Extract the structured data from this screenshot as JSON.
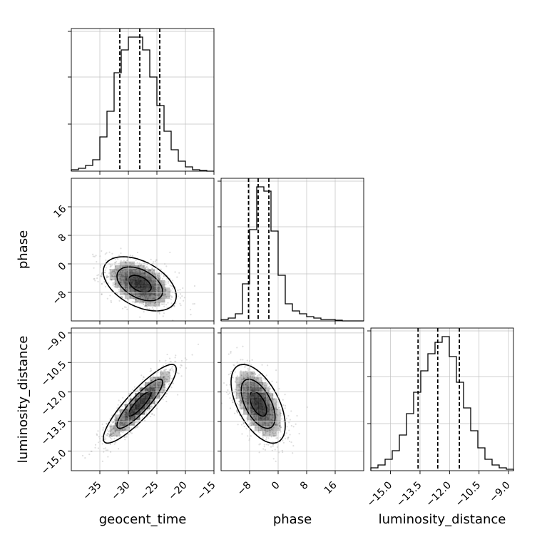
{
  "chart_data": {
    "type": "corner",
    "parameters": [
      {
        "name": "geocent_time",
        "range": [
          -40,
          -15
        ],
        "ticks": [
          -35,
          -30,
          -25,
          -20,
          -15
        ],
        "tick_labels": [
          "−35",
          "−30",
          "−25",
          "−20",
          "−15"
        ],
        "quantiles": [
          -31.5,
          -28.0,
          -24.5
        ],
        "hist_bins": [
          -40,
          -38.75,
          -37.5,
          -36.25,
          -35,
          -33.75,
          -32.5,
          -31.25,
          -30,
          -28.75,
          -27.5,
          -26.25,
          -25,
          -23.75,
          -22.5,
          -21.25,
          -20,
          -18.75,
          -17.5,
          -16.25,
          -15
        ],
        "hist_heights": [
          0.01,
          0.02,
          0.04,
          0.08,
          0.24,
          0.42,
          0.69,
          0.85,
          0.94,
          0.94,
          0.85,
          0.66,
          0.46,
          0.28,
          0.15,
          0.07,
          0.03,
          0.01,
          0.005,
          0.0
        ]
      },
      {
        "name": "phase",
        "range": [
          -16,
          24
        ],
        "ticks": [
          -8,
          0,
          8,
          16
        ],
        "tick_labels": [
          "−8",
          "0",
          "8",
          "16"
        ],
        "quantiles": [
          -8.3,
          -5.6,
          -2.6
        ],
        "hist_bins": [
          -16,
          -14,
          -12,
          -10,
          -8,
          -6,
          -4,
          -2,
          0,
          2,
          4,
          6,
          8,
          10,
          12,
          14,
          16,
          18,
          20,
          22,
          24
        ],
        "hist_heights": [
          0.01,
          0.02,
          0.05,
          0.26,
          0.64,
          0.94,
          0.91,
          0.63,
          0.32,
          0.12,
          0.07,
          0.05,
          0.03,
          0.02,
          0.01,
          0.01,
          0.005,
          0.0,
          0.0,
          0.0
        ]
      },
      {
        "name": "luminosity_distance",
        "range": [
          -16.0,
          -8.75
        ],
        "ticks": [
          -15.0,
          -13.5,
          -12.0,
          -10.5,
          -9.0
        ],
        "tick_labels": [
          "−15.0",
          "−13.5",
          "−12.0",
          "−10.5",
          "−9.0"
        ],
        "quantiles": [
          -13.6,
          -12.6,
          -11.5
        ],
        "hist_bins": [
          -16.0,
          -15.6375,
          -15.275,
          -14.9125,
          -14.55,
          -14.1875,
          -13.825,
          -13.4625,
          -13.1,
          -12.7375,
          -12.375,
          -12.0125,
          -11.65,
          -11.2875,
          -10.925,
          -10.5625,
          -10.2,
          -9.8375,
          -9.475,
          -9.1125,
          -8.75
        ],
        "hist_heights": [
          0.02,
          0.04,
          0.08,
          0.14,
          0.25,
          0.4,
          0.55,
          0.7,
          0.82,
          0.9,
          0.94,
          0.8,
          0.62,
          0.44,
          0.28,
          0.16,
          0.08,
          0.04,
          0.02,
          0.01
        ]
      }
    ],
    "pairs": [
      {
        "x_param": 0,
        "y_param": 1,
        "center": [
          -28.0,
          -5.6
        ],
        "sd": [
          3.2,
          3.8
        ],
        "corr": -0.45,
        "contours": [
          0.5,
          1.0,
          1.6
        ]
      },
      {
        "x_param": 0,
        "y_param": 2,
        "center": [
          -28.0,
          -12.6
        ],
        "sd": [
          3.2,
          1.0
        ],
        "corr": 0.88,
        "contours": [
          0.5,
          1.0,
          1.6
        ]
      },
      {
        "x_param": 1,
        "y_param": 2,
        "center": [
          -5.6,
          -12.6
        ],
        "sd": [
          3.8,
          1.0
        ],
        "corr": -0.55,
        "contours": [
          0.5,
          1.0,
          1.6
        ]
      }
    ],
    "grid": true,
    "title": "",
    "legend": "none"
  }
}
